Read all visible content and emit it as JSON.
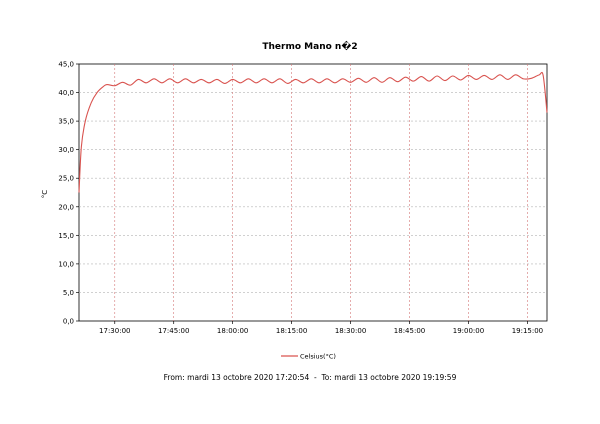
{
  "chart_data": {
    "type": "line",
    "title": "Thermo Mano n�2",
    "xlabel": "",
    "ylabel": "°C",
    "ylim": [
      0,
      45
    ],
    "y_ticks": [
      "0,0",
      "5,0",
      "10,0",
      "15,0",
      "20,0",
      "25,0",
      "30,0",
      "35,0",
      "40,0",
      "45,0"
    ],
    "xlim": [
      "17:20:54",
      "19:19:59"
    ],
    "x_ticks": [
      "17:30:00",
      "17:45:00",
      "18:00:00",
      "18:15:00",
      "18:30:00",
      "18:45:00",
      "19:00:00",
      "19:15:00"
    ],
    "grid": true,
    "legend_position": "bottom",
    "series": [
      {
        "name": "Celsius(°C)",
        "color": "#d9534f",
        "x": [
          "17:20:54",
          "17:21:30",
          "17:22:30",
          "17:24:00",
          "17:25:30",
          "17:27:00",
          "17:28:00",
          "17:30:00",
          "17:32:00",
          "17:34:00",
          "17:36:00",
          "17:38:00",
          "17:40:00",
          "17:42:00",
          "17:44:00",
          "17:46:00",
          "17:48:00",
          "17:50:00",
          "17:52:00",
          "17:54:00",
          "17:56:00",
          "17:58:00",
          "18:00:00",
          "18:02:00",
          "18:04:00",
          "18:06:00",
          "18:08:00",
          "18:10:00",
          "18:12:00",
          "18:14:00",
          "18:16:00",
          "18:18:00",
          "18:20:00",
          "18:22:00",
          "18:24:00",
          "18:26:00",
          "18:28:00",
          "18:30:00",
          "18:32:00",
          "18:34:00",
          "18:36:00",
          "18:38:00",
          "18:40:00",
          "18:42:00",
          "18:44:00",
          "18:46:00",
          "18:48:00",
          "18:50:00",
          "18:52:00",
          "18:54:00",
          "18:56:00",
          "18:58:00",
          "19:00:00",
          "19:02:00",
          "19:04:00",
          "19:06:00",
          "19:08:00",
          "19:10:00",
          "19:12:00",
          "19:14:00",
          "19:16:00",
          "19:18:00",
          "19:19:00",
          "19:19:59"
        ],
        "y": [
          22.5,
          30.5,
          35.0,
          38.2,
          40.0,
          41.0,
          41.4,
          41.2,
          41.8,
          41.3,
          42.3,
          41.7,
          42.4,
          41.7,
          42.4,
          41.7,
          42.4,
          41.7,
          42.3,
          41.7,
          42.3,
          41.6,
          42.3,
          41.7,
          42.4,
          41.7,
          42.4,
          41.7,
          42.4,
          41.6,
          42.3,
          41.7,
          42.4,
          41.7,
          42.4,
          41.7,
          42.4,
          41.8,
          42.5,
          41.8,
          42.6,
          41.8,
          42.6,
          41.9,
          42.7,
          42.0,
          42.8,
          42.0,
          42.9,
          42.1,
          42.9,
          42.2,
          43.0,
          42.3,
          43.0,
          42.3,
          43.1,
          42.3,
          43.1,
          42.4,
          42.5,
          43.1,
          43.0,
          36.5
        ]
      }
    ]
  },
  "footer": {
    "text": "From: mardi 13 octobre 2020 17:20:54  -  To: mardi 13 octobre 2020 19:19:59"
  }
}
